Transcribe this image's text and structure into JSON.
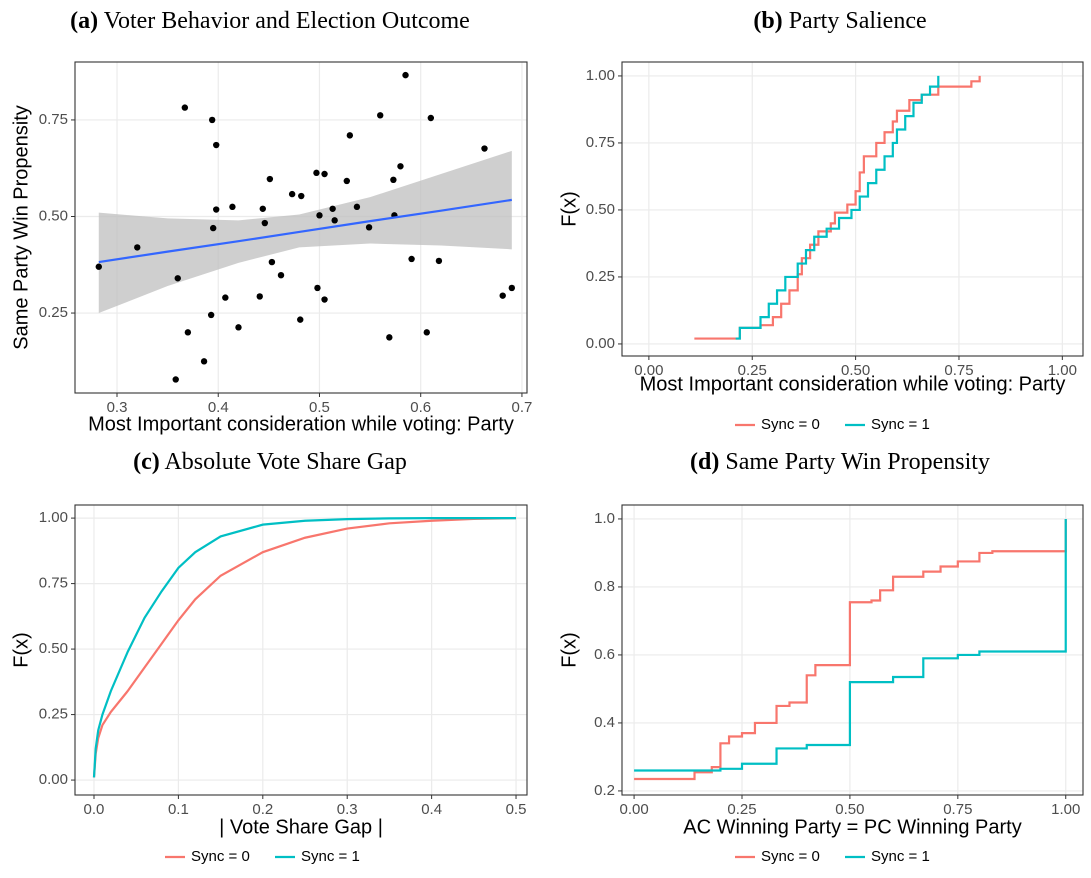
{
  "chart_data": [
    {
      "type": "scatter",
      "panel": "(a)",
      "title": "Voter Behavior and Election Outcome",
      "xlabel": "Most Important consideration while voting: Party",
      "ylabel": "Same Party Win Propensity",
      "x": [
        0.282,
        0.32,
        0.358,
        0.36,
        0.367,
        0.37,
        0.386,
        0.393,
        0.394,
        0.395,
        0.398,
        0.398,
        0.407,
        0.414,
        0.42,
        0.441,
        0.444,
        0.446,
        0.451,
        0.453,
        0.462,
        0.473,
        0.481,
        0.482,
        0.497,
        0.498,
        0.5,
        0.505,
        0.505,
        0.513,
        0.515,
        0.527,
        0.53,
        0.537,
        0.549,
        0.56,
        0.569,
        0.573,
        0.574,
        0.58,
        0.585,
        0.591,
        0.606,
        0.61,
        0.618,
        0.663,
        0.681,
        0.69
      ],
      "values": [
        0.37,
        0.42,
        0.078,
        0.34,
        0.782,
        0.2,
        0.125,
        0.245,
        0.75,
        0.47,
        0.685,
        0.518,
        0.29,
        0.525,
        0.213,
        0.293,
        0.52,
        0.483,
        0.597,
        0.382,
        0.348,
        0.558,
        0.233,
        0.553,
        0.613,
        0.315,
        0.503,
        0.61,
        0.285,
        0.52,
        0.49,
        0.592,
        0.71,
        0.525,
        0.472,
        0.762,
        0.187,
        0.595,
        0.503,
        0.63,
        0.866,
        0.39,
        0.2,
        0.755,
        0.385,
        0.676,
        0.295,
        0.315
      ],
      "color": "#000000",
      "fit": {
        "color": "#3366ff",
        "band_color": "#bfbfbf",
        "x": [
          0.282,
          0.35,
          0.42,
          0.48,
          0.55,
          0.62,
          0.69
        ],
        "values": [
          0.382,
          0.409,
          0.436,
          0.46,
          0.488,
          0.515,
          0.543
        ],
        "upper": [
          0.51,
          0.495,
          0.49,
          0.505,
          0.55,
          0.61,
          0.67
        ],
        "lower": [
          0.25,
          0.32,
          0.38,
          0.42,
          0.43,
          0.425,
          0.415
        ]
      },
      "xlim": [
        0.2585,
        0.705
      ],
      "ylim": [
        0.043,
        0.9
      ],
      "xticks": [
        0.3,
        0.4,
        0.5,
        0.6,
        0.7
      ],
      "yticks": [
        0.25,
        {
          "value": 0.5,
          "label": "0.50"
        },
        0.75
      ],
      "grid": true
    },
    {
      "type": "step",
      "panel": "(b)",
      "title": "Party Salience",
      "xlabel": "Most Important consideration while voting: Party",
      "ylabel": "F(x)",
      "legend": "bottom",
      "series": [
        {
          "name": "Sync = 0",
          "color": "#F8766D",
          "x": [
            0.11,
            0.22,
            0.27,
            0.3,
            0.32,
            0.34,
            0.36,
            0.37,
            0.39,
            0.41,
            0.44,
            0.45,
            0.48,
            0.5,
            0.51,
            0.52,
            0.55,
            0.57,
            0.59,
            0.6,
            0.63,
            0.66,
            0.7,
            0.78,
            0.8
          ],
          "values": [
            0.02,
            0.06,
            0.07,
            0.1,
            0.15,
            0.2,
            0.26,
            0.32,
            0.37,
            0.42,
            0.45,
            0.49,
            0.52,
            0.57,
            0.64,
            0.7,
            0.75,
            0.79,
            0.83,
            0.87,
            0.91,
            0.93,
            0.96,
            0.98,
            1.0
          ]
        },
        {
          "name": "Sync = 1",
          "color": "#00BFC4",
          "x": [
            0.21,
            0.22,
            0.27,
            0.29,
            0.31,
            0.33,
            0.36,
            0.38,
            0.4,
            0.43,
            0.46,
            0.49,
            0.51,
            0.53,
            0.55,
            0.57,
            0.59,
            0.6,
            0.62,
            0.64,
            0.66,
            0.68,
            0.7
          ],
          "values": [
            0.02,
            0.06,
            0.1,
            0.15,
            0.2,
            0.25,
            0.3,
            0.35,
            0.4,
            0.43,
            0.47,
            0.5,
            0.55,
            0.6,
            0.65,
            0.7,
            0.75,
            0.8,
            0.85,
            0.9,
            0.93,
            0.96,
            1.0
          ]
        }
      ],
      "xlim": [
        -0.065,
        1.05
      ],
      "ylim": [
        -0.045,
        1.052
      ],
      "xticks": [
        {
          "value": 0,
          "label": "0.00"
        },
        0.25,
        {
          "value": 0.5,
          "label": "0.50"
        },
        0.75,
        {
          "value": 1,
          "label": "1.00"
        }
      ],
      "yticks": [
        {
          "value": 0,
          "label": "0.00"
        },
        0.25,
        {
          "value": 0.5,
          "label": "0.50"
        },
        0.75,
        {
          "value": 1,
          "label": "1.00"
        }
      ],
      "grid": true
    },
    {
      "type": "line",
      "panel": "(c)",
      "title": "Absolute Vote Share Gap",
      "xlabel": "| Vote Share Gap |",
      "ylabel": "F(x)",
      "legend": "bottom",
      "series": [
        {
          "name": "Sync = 0",
          "color": "#F8766D",
          "x": [
            0,
            0.002,
            0.005,
            0.01,
            0.02,
            0.04,
            0.06,
            0.08,
            0.1,
            0.12,
            0.15,
            0.2,
            0.25,
            0.3,
            0.35,
            0.4,
            0.45,
            0.5
          ],
          "values": [
            0.01,
            0.1,
            0.16,
            0.21,
            0.26,
            0.34,
            0.43,
            0.52,
            0.61,
            0.69,
            0.78,
            0.87,
            0.925,
            0.96,
            0.98,
            0.99,
            0.997,
            1.0
          ]
        },
        {
          "name": "Sync = 1",
          "color": "#00BFC4",
          "x": [
            0,
            0.002,
            0.005,
            0.01,
            0.02,
            0.04,
            0.06,
            0.08,
            0.1,
            0.12,
            0.15,
            0.2,
            0.25,
            0.3,
            0.35,
            0.4,
            0.45,
            0.5
          ],
          "values": [
            0.01,
            0.12,
            0.19,
            0.25,
            0.34,
            0.49,
            0.62,
            0.72,
            0.81,
            0.87,
            0.93,
            0.975,
            0.99,
            0.996,
            0.999,
            1.0,
            1.0,
            1.0
          ]
        }
      ],
      "xlim": [
        -0.0225,
        0.513
      ],
      "ylim": [
        -0.057,
        1.05
      ],
      "xticks": [
        {
          "value": 0,
          "label": "0.0"
        },
        0.1,
        0.2,
        0.3,
        0.4,
        0.5
      ],
      "yticks": [
        {
          "value": 0,
          "label": "0.00"
        },
        0.25,
        {
          "value": 0.5,
          "label": "0.50"
        },
        0.75,
        {
          "value": 1,
          "label": "1.00"
        }
      ],
      "grid": true
    },
    {
      "type": "step",
      "panel": "(d)",
      "title": "Same Party Win Propensity",
      "xlabel": "AC Winning Party = PC Winning Party",
      "ylabel": "F(x)",
      "legend": "bottom",
      "series": [
        {
          "name": "Sync = 0",
          "color": "#F8766D",
          "x": [
            0,
            0.14,
            0.18,
            0.2,
            0.22,
            0.25,
            0.28,
            0.33,
            0.36,
            0.4,
            0.42,
            0.5,
            0.55,
            0.57,
            0.6,
            0.67,
            0.71,
            0.75,
            0.8,
            0.83,
            1.0
          ],
          "values": [
            0.235,
            0.255,
            0.27,
            0.34,
            0.36,
            0.37,
            0.4,
            0.45,
            0.46,
            0.54,
            0.57,
            0.755,
            0.76,
            0.79,
            0.83,
            0.845,
            0.86,
            0.875,
            0.9,
            0.905,
            1.0
          ]
        },
        {
          "name": "Sync = 1",
          "color": "#00BFC4",
          "x": [
            0,
            0.2,
            0.25,
            0.33,
            0.4,
            0.5,
            0.6,
            0.67,
            0.75,
            0.8,
            1.0
          ],
          "values": [
            0.26,
            0.265,
            0.28,
            0.325,
            0.335,
            0.52,
            0.535,
            0.59,
            0.6,
            0.61,
            1.0
          ]
        }
      ],
      "xlim": [
        -0.028,
        1.04
      ],
      "ylim": [
        0.188,
        1.041
      ],
      "xticks": [
        {
          "value": 0,
          "label": "0.00"
        },
        0.25,
        {
          "value": 0.5,
          "label": "0.50"
        },
        0.75,
        {
          "value": 1,
          "label": "1.00"
        }
      ],
      "yticks": [
        0.2,
        0.4,
        0.6,
        0.8,
        {
          "value": 1,
          "label": "1.0"
        }
      ],
      "grid": true
    }
  ]
}
